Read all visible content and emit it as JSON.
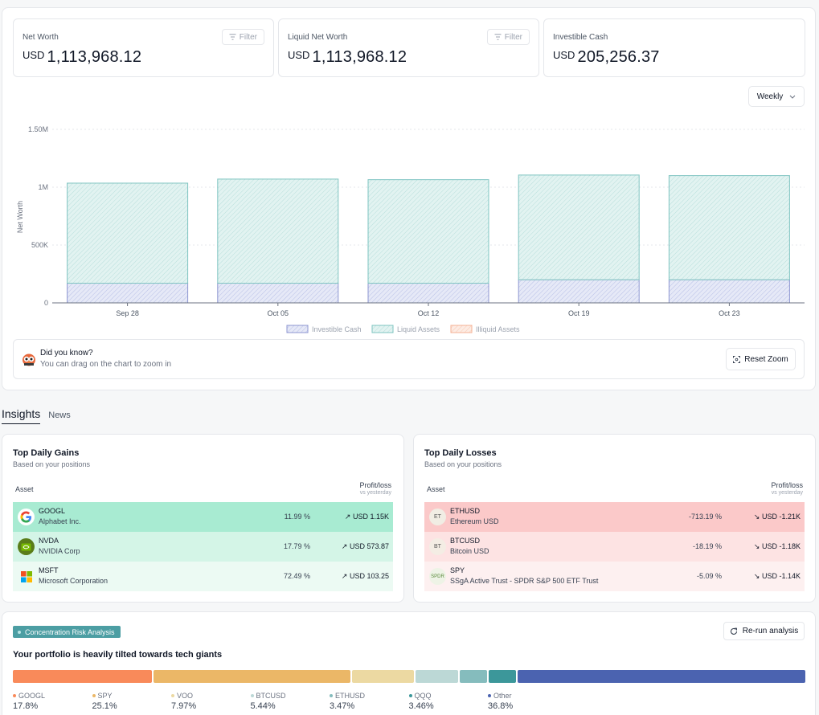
{
  "stats": [
    {
      "label": "Net Worth",
      "currency": "USD",
      "value": "1,113,968.12",
      "filter": "Filter"
    },
    {
      "label": "Liquid Net Worth",
      "currency": "USD",
      "value": "1,113,968.12",
      "filter": "Filter"
    },
    {
      "label": "Investible Cash",
      "currency": "USD",
      "value": "205,256.37"
    }
  ],
  "period_select": "Weekly",
  "chart_data": {
    "type": "bar",
    "stacked": true,
    "categories": [
      "Sep 28",
      "Oct 05",
      "Oct 12",
      "Oct 19",
      "Oct 23"
    ],
    "series": [
      {
        "name": "Investible Cash",
        "values": [
          170000,
          170000,
          170000,
          200000,
          200000
        ],
        "color": "#6b76c4"
      },
      {
        "name": "Liquid Assets",
        "values": [
          865000,
          900000,
          895000,
          905000,
          900000
        ],
        "color": "#5fb7b4"
      },
      {
        "name": "Illiquid Assets",
        "values": [
          0,
          0,
          0,
          0,
          0
        ],
        "color": "#f4a98a"
      }
    ],
    "ylabel": "Net Worth",
    "ylim": [
      0,
      1500000
    ],
    "yticks": [
      {
        "v": 0,
        "label": "0"
      },
      {
        "v": 500000,
        "label": "500K"
      },
      {
        "v": 1000000,
        "label": "1M"
      },
      {
        "v": 1500000,
        "label": "1.50M"
      }
    ],
    "grid": true,
    "legend": "bottom"
  },
  "tip": {
    "title": "Did you know?",
    "text": "You can drag on the chart to zoom in",
    "reset": "Reset Zoom"
  },
  "tabs": [
    {
      "label": "Insights"
    },
    {
      "label": "News"
    }
  ],
  "gains": {
    "title": "Top Daily Gains",
    "subtitle": "Based on your positions",
    "col_asset": "Asset",
    "col_pl": "Profit/loss",
    "col_pl_sub": "vs yesterday",
    "rows": [
      {
        "ticker": "GOOGL",
        "name": "Alphabet Inc.",
        "pct": "11.99 %",
        "amount": "USD 1.15K",
        "logo": "google-logo"
      },
      {
        "ticker": "NVDA",
        "name": "NVIDIA Corp",
        "pct": "17.79 %",
        "amount": "USD 573.87",
        "logo": "nvidia-logo"
      },
      {
        "ticker": "MSFT",
        "name": "Microsoft Corporation",
        "pct": "72.49 %",
        "amount": "USD 103.25",
        "logo": "microsoft-logo"
      }
    ]
  },
  "losses": {
    "title": "Top Daily Losses",
    "subtitle": "Based on your positions",
    "col_asset": "Asset",
    "col_pl": "Profit/loss",
    "col_pl_sub": "vs yesterday",
    "rows": [
      {
        "ticker": "ETHUSD",
        "name": "Ethereum USD",
        "pct": "-713.19 %",
        "amount": "USD -1.21K",
        "logo_text": "ET"
      },
      {
        "ticker": "BTCUSD",
        "name": "Bitcoin USD",
        "pct": "-18.19 %",
        "amount": "USD -1.18K",
        "logo_text": "BT"
      },
      {
        "ticker": "SPY",
        "name": "SSgA Active Trust - SPDR S&P 500 ETF Trust",
        "pct": "-5.09 %",
        "amount": "USD -1.14K",
        "logo_text": "SPDR"
      }
    ]
  },
  "risk": {
    "badge": "Concentration Risk Analysis",
    "rerun": "Re-run analysis",
    "title": "Your portfolio is heavily tilted towards tech giants",
    "segments": [
      {
        "name": "GOOGL",
        "pct": "17.8%",
        "share": 17.8,
        "color": "#f98a5a"
      },
      {
        "name": "SPY",
        "pct": "25.1%",
        "share": 25.1,
        "color": "#ebb767"
      },
      {
        "name": "VOO",
        "pct": "7.97%",
        "share": 7.97,
        "color": "#ecd9a2"
      },
      {
        "name": "BTCUSD",
        "pct": "5.44%",
        "share": 5.44,
        "color": "#bcd8d6"
      },
      {
        "name": "ETHUSD",
        "pct": "3.47%",
        "share": 3.47,
        "color": "#85bcbd"
      },
      {
        "name": "QQQ",
        "pct": "3.46%",
        "share": 3.46,
        "color": "#3c979a"
      },
      {
        "name": "Other",
        "pct": "36.8%",
        "share": 36.8,
        "color": "#4b63b0"
      }
    ]
  }
}
